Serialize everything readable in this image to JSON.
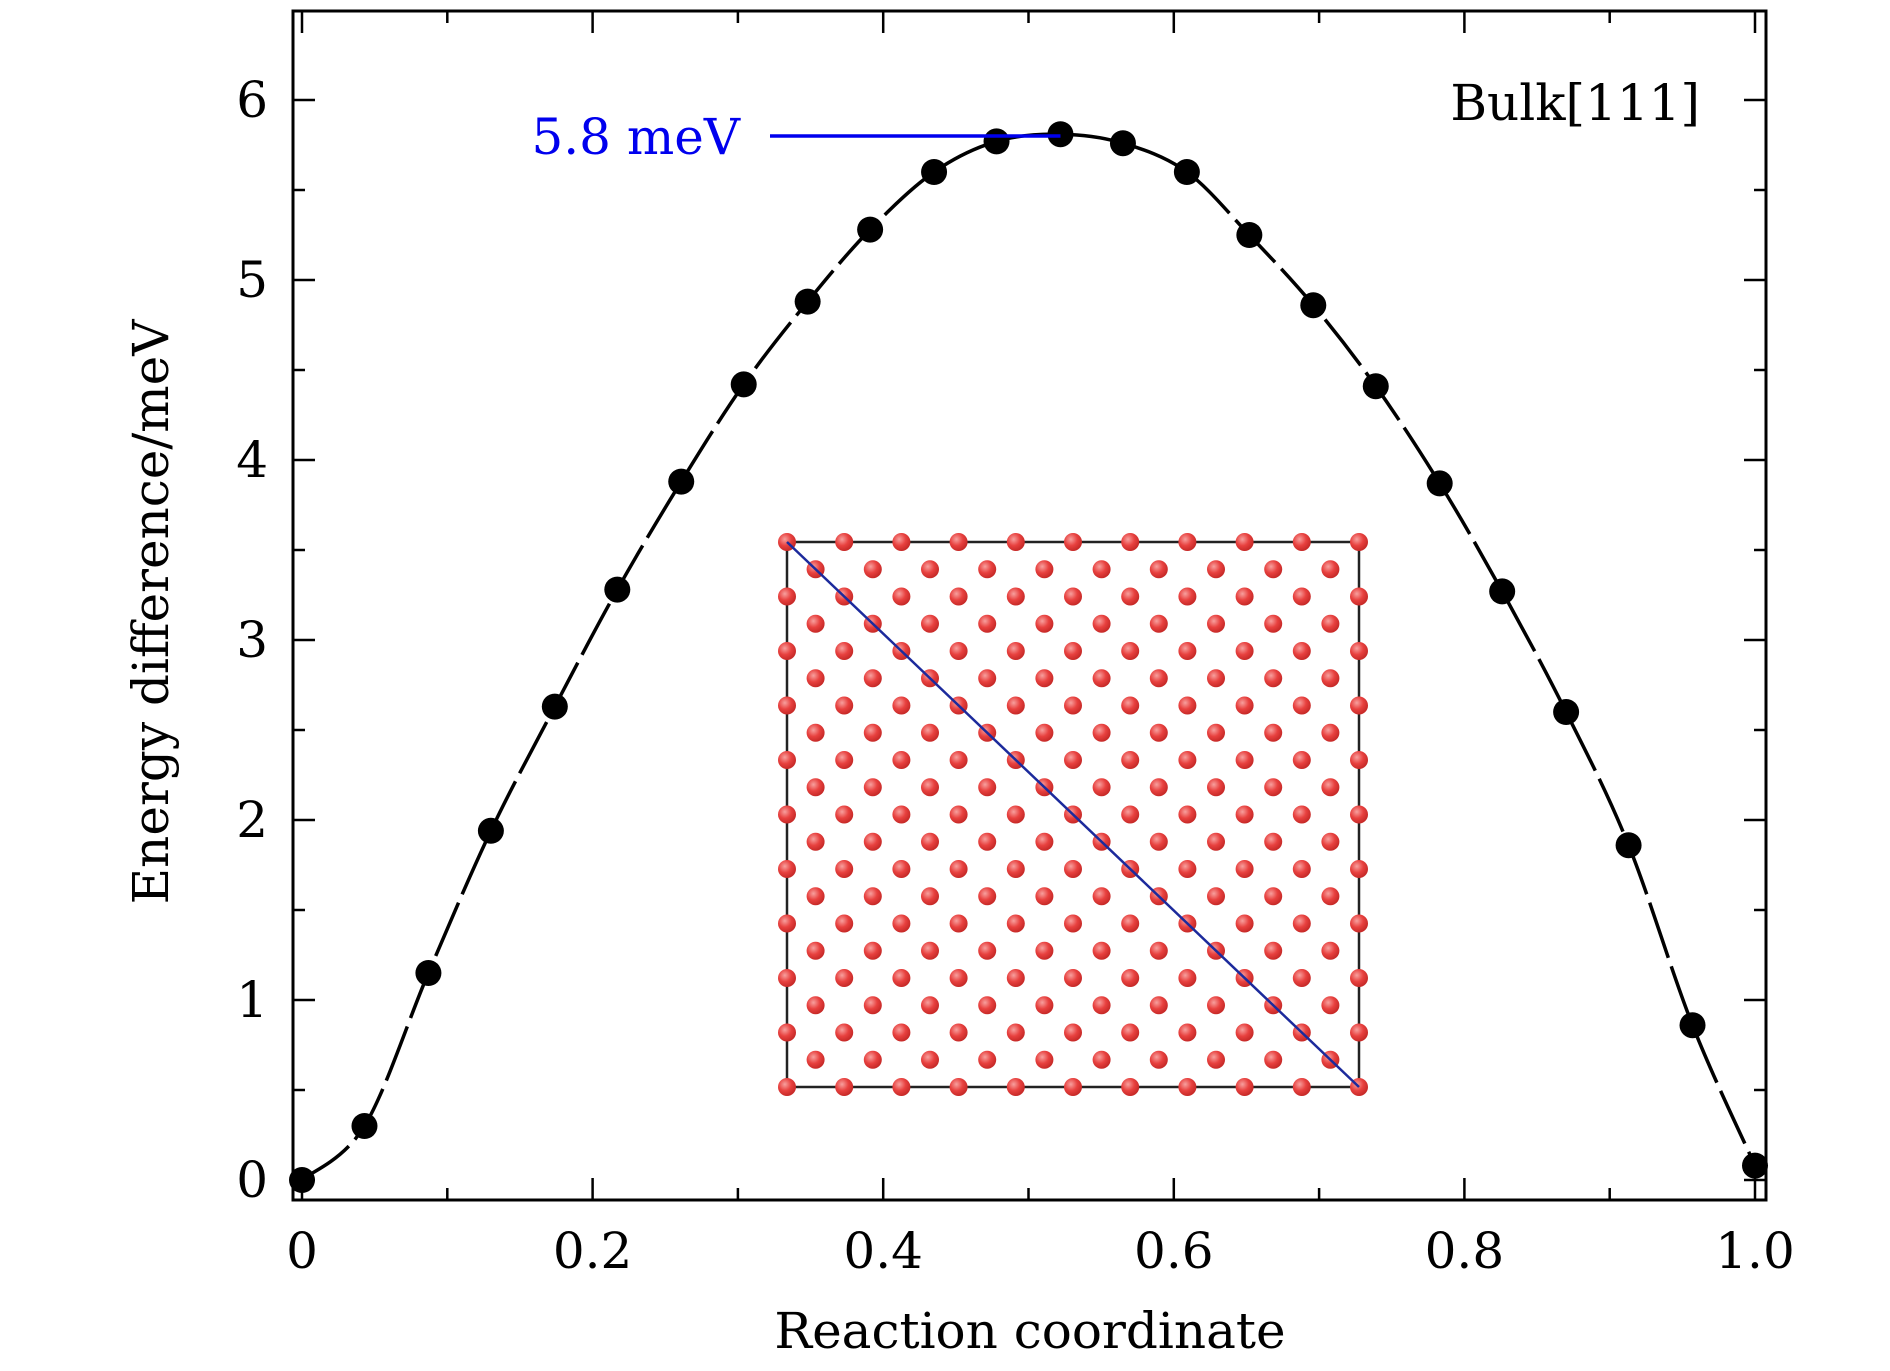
{
  "chart_data": {
    "type": "scatter",
    "title": "",
    "xlabel": "Reaction coordinate",
    "ylabel": "Energy difference/meV",
    "xlim": [
      -0.01,
      1.01
    ],
    "ylim": [
      -0.12,
      6.5
    ],
    "x_ticks": [
      0,
      0.2,
      0.4,
      0.6,
      0.8,
      1.0
    ],
    "x_tick_labels": [
      "0",
      "0.2",
      "0.4",
      "0.6",
      "0.8",
      "1.0"
    ],
    "y_ticks": [
      0,
      1,
      2,
      3,
      4,
      5,
      6
    ],
    "y_tick_labels": [
      "0",
      "1",
      "2",
      "3",
      "4",
      "5",
      "6"
    ],
    "grid": false,
    "legend": "none",
    "series": [
      {
        "style": "markers with dashed fitted curve",
        "x": [
          0.0,
          0.043,
          0.087,
          0.13,
          0.174,
          0.217,
          0.261,
          0.304,
          0.348,
          0.391,
          0.435,
          0.478,
          0.522,
          0.565,
          0.609,
          0.652,
          0.696,
          0.739,
          0.783,
          0.826,
          0.87,
          0.913,
          0.957,
          1.0
        ],
        "y": [
          0.0,
          0.3,
          1.15,
          1.94,
          2.63,
          3.28,
          3.88,
          4.42,
          4.88,
          5.28,
          5.6,
          5.77,
          5.81,
          5.76,
          5.6,
          5.25,
          4.86,
          4.41,
          3.87,
          3.27,
          2.6,
          1.86,
          0.86,
          0.08
        ]
      }
    ],
    "annotations": {
      "barrier_label": "5.8 meV",
      "barrier_value": 5.8,
      "barrier_x": 0.522,
      "structure_label": "Bulk[111]"
    },
    "colors": {
      "data": "#000000",
      "annotation": "#0000ee",
      "atom": "#e8413f",
      "inset_path": "#1c2a9c"
    }
  }
}
